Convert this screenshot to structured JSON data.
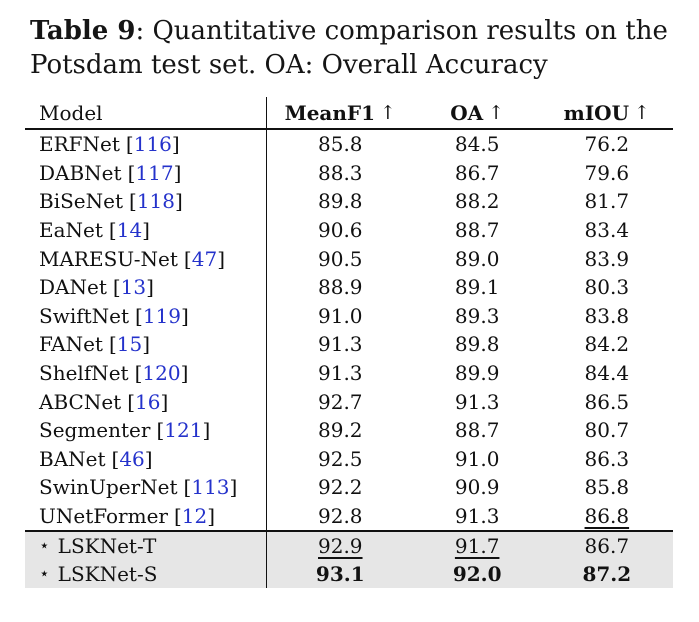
{
  "caption": {
    "bold": "Table 9",
    "line1_rest": ": Quantitative comparison results on the",
    "line2": "Potsdam test set. OA: Overall Accuracy"
  },
  "table": {
    "header": {
      "model": "Model",
      "cols": [
        {
          "label": "MeanF1",
          "arrow": "↑"
        },
        {
          "label": "OA",
          "arrow": "↑"
        },
        {
          "label": "mIOU",
          "arrow": "↑"
        }
      ]
    },
    "rows": [
      {
        "name": "ERFNet",
        "lb": "[",
        "ref": "116",
        "rb": "]",
        "meanf1": "85.8",
        "oa": "84.5",
        "miou": "76.2"
      },
      {
        "name": "DABNet",
        "lb": "[",
        "ref": "117",
        "rb": "]",
        "meanf1": "88.3",
        "oa": "86.7",
        "miou": "79.6"
      },
      {
        "name": "BiSeNet",
        "lb": "[",
        "ref": "118",
        "rb": "]",
        "meanf1": "89.8",
        "oa": "88.2",
        "miou": "81.7"
      },
      {
        "name": "EaNet",
        "lb": "[",
        "ref": "14",
        "rb": "]",
        "meanf1": "90.6",
        "oa": "88.7",
        "miou": "83.4"
      },
      {
        "name": "MARESU-Net",
        "lb": "[",
        "ref": "47",
        "rb": "]",
        "meanf1": "90.5",
        "oa": "89.0",
        "miou": "83.9"
      },
      {
        "name": "DANet",
        "lb": "[",
        "ref": "13",
        "rb": "]",
        "meanf1": "88.9",
        "oa": "89.1",
        "miou": "80.3"
      },
      {
        "name": "SwiftNet",
        "lb": "[",
        "ref": "119",
        "rb": "]",
        "meanf1": "91.0",
        "oa": "89.3",
        "miou": "83.8"
      },
      {
        "name": "FANet",
        "lb": "[",
        "ref": "15",
        "rb": "]",
        "meanf1": "91.3",
        "oa": "89.8",
        "miou": "84.2"
      },
      {
        "name": "ShelfNet",
        "lb": "[",
        "ref": "120",
        "rb": "]",
        "meanf1": "91.3",
        "oa": "89.9",
        "miou": "84.4"
      },
      {
        "name": "ABCNet",
        "lb": "[",
        "ref": "16",
        "rb": "]",
        "meanf1": "92.7",
        "oa": "91.3",
        "miou": "86.5"
      },
      {
        "name": "Segmenter",
        "lb": "[",
        "ref": "121",
        "rb": "]",
        "meanf1": "89.2",
        "oa": "88.7",
        "miou": "80.7"
      },
      {
        "name": "BANet",
        "lb": "[",
        "ref": "46",
        "rb": "]",
        "meanf1": "92.5",
        "oa": "91.0",
        "miou": "86.3"
      },
      {
        "name": "SwinUperNet",
        "lb": "[",
        "ref": "113",
        "rb": "]",
        "meanf1": "92.2",
        "oa": "90.9",
        "miou": "85.8"
      },
      {
        "name": "UNetFormer",
        "lb": "[",
        "ref": "12",
        "rb": "]",
        "meanf1": "92.8",
        "oa": "91.3",
        "miou": "86.8"
      },
      {
        "star": "⋆",
        "name": "LSKNet-T",
        "meanf1": "92.9",
        "oa": "91.7",
        "miou": "86.7"
      },
      {
        "star": "⋆",
        "name": "LSKNet-S",
        "meanf1": "93.1",
        "oa": "92.0",
        "miou": "87.2"
      }
    ],
    "colors": {
      "citation_blue": "#2432cb",
      "highlight_bg": "#e6e6e6",
      "rule_black": "#111111"
    }
  }
}
